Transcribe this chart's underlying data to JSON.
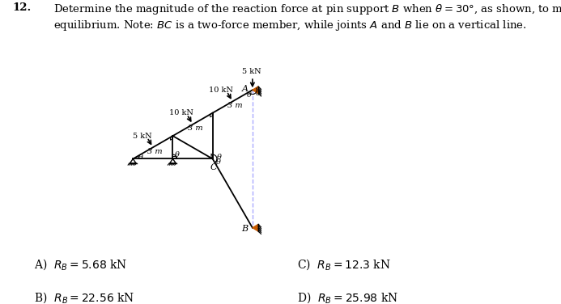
{
  "bg_color": "#ffffff",
  "line_color": "#000000",
  "support_color": "#c85a00",
  "dashed_color": "#aaaaff",
  "theta_deg": 30,
  "L": 3.0,
  "title_number": "12.",
  "title_body": "Determine the magnitude of the reaction force at pin support $B$ when $\\theta = 30°$, as shown, to maintain\nequilibrium. Note: $BC$ is a two-force member, while joints $A$ and $B$ lie on a vertical line.",
  "title_fontsize": 9.5,
  "ans_A": "A)  $R_B = 5.68$ kN",
  "ans_B": "B)  $R_B = 22.56$ kN",
  "ans_C": "C)  $R_B = 12.3$ kN",
  "ans_D": "D)  $R_B = 25.98$ kN",
  "ans_fontsize": 10
}
